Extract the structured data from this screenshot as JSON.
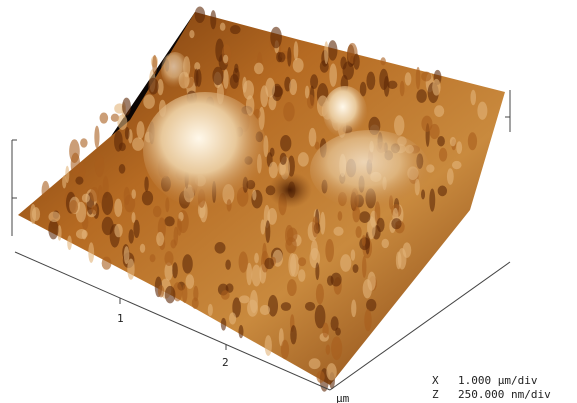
{
  "axes": {
    "x_ticks": [
      "1",
      "2"
    ],
    "unit": "µm"
  },
  "scale": {
    "rows": [
      {
        "axis": "X",
        "value": "1.000 µm/div"
      },
      {
        "axis": "Z",
        "value": "250.000 nm/div"
      }
    ]
  }
}
